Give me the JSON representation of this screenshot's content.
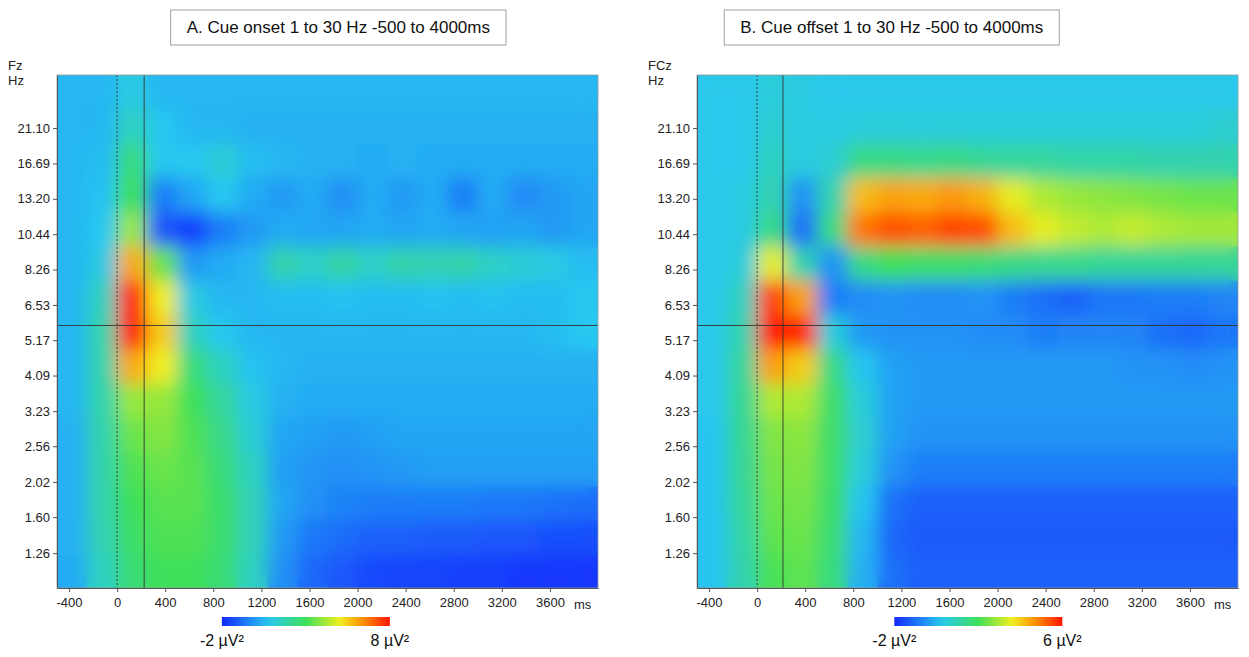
{
  "chart_data": [
    {
      "type": "heatmap",
      "title": "A. Cue onset 1 to 30 Hz -500 to 4000ms",
      "annotations": [
        "Fz"
      ],
      "x_label": "ms",
      "y_label": "Hz",
      "log": "y",
      "xlim": [
        -500,
        4000
      ],
      "ylim": [
        1,
        30
      ],
      "xticks": [
        -400,
        0,
        400,
        800,
        1200,
        1600,
        2000,
        2400,
        2800,
        3200,
        3600
      ],
      "yticks": [
        1.26,
        {
          "value": 1.6,
          "label": "1.60"
        },
        2.02,
        2.56,
        3.23,
        4.09,
        5.17,
        6.53,
        8.26,
        10.44,
        {
          "value": 13.2,
          "label": "13.20"
        },
        16.69,
        {
          "value": 21.1,
          "label": "21.10"
        }
      ],
      "x_bins": [
        -500,
        -250,
        0,
        250,
        500,
        750,
        1000,
        1250,
        1500,
        1750,
        2000,
        2250,
        2500,
        2750,
        3000,
        3250,
        3500,
        3750,
        4000
      ],
      "y_bins": [
        1,
        1.25,
        1.57,
        1.97,
        2.48,
        3.11,
        3.9,
        4.89,
        6.14,
        7.7,
        9.66,
        12.11,
        15.19,
        19.06,
        23.91,
        30
      ],
      "values": [
        [
          0.3,
          1.5,
          2.6,
          3.0,
          3.0,
          2.6,
          1.5,
          -0.2,
          -0.9,
          -1.2,
          -1.4,
          -1.5,
          -1.5,
          -1.6,
          -1.6,
          -1.7,
          -1.7,
          -1.7
        ],
        [
          0.4,
          1.7,
          2.8,
          3.2,
          3.2,
          2.7,
          1.6,
          0,
          -0.6,
          -0.8,
          -1.0,
          -1.0,
          -1.1,
          -1.1,
          -1.2,
          -1.2,
          -1.3,
          -1.3
        ],
        [
          0.4,
          1.8,
          3.0,
          3.3,
          3.3,
          2.7,
          1.6,
          0.2,
          -0.2,
          -0.4,
          -0.5,
          -0.5,
          -0.5,
          -0.5,
          -0.6,
          -0.6,
          -0.7,
          -0.8
        ],
        [
          0.4,
          1.8,
          3.2,
          3.5,
          3.3,
          2.5,
          1.5,
          0.1,
          -0.1,
          -0.2,
          -0.1,
          0,
          0.1,
          0.1,
          0.1,
          0.1,
          0.1,
          0.1
        ],
        [
          0.4,
          1.8,
          3.5,
          3.8,
          3.2,
          2.3,
          1.2,
          0.2,
          0.1,
          0,
          0.1,
          0.2,
          0.2,
          0.2,
          0.2,
          0.2,
          0.2,
          0.2
        ],
        [
          0.5,
          1.8,
          4.0,
          4.0,
          3.0,
          2.0,
          1.0,
          0.4,
          0.3,
          0.3,
          0.3,
          0.3,
          0.3,
          0.3,
          0.3,
          0.3,
          0.3,
          0.3
        ],
        [
          0.5,
          1.8,
          6.0,
          5.0,
          2.5,
          1.5,
          0.7,
          0.5,
          0.4,
          0.4,
          0.4,
          0.4,
          0.4,
          0.4,
          0.4,
          0.4,
          0.4,
          0.4
        ],
        [
          0.5,
          1.8,
          8.0,
          5.5,
          1.5,
          0.8,
          0.5,
          0.5,
          0.5,
          0.5,
          0.5,
          0.5,
          0.5,
          0.5,
          0.5,
          0.5,
          0.6,
          0.8
        ],
        [
          0.5,
          1.5,
          7.8,
          5.0,
          1.0,
          0.5,
          0.5,
          0.6,
          0.6,
          0.7,
          0.6,
          0.6,
          0.7,
          0.6,
          0.7,
          0.6,
          0.6,
          0.8
        ],
        [
          0.5,
          1.0,
          6.0,
          3.5,
          0,
          0.3,
          0.5,
          1.8,
          1.4,
          1.9,
          1.4,
          1.8,
          1.7,
          1.8,
          1.4,
          1.2,
          1.0,
          0.6
        ],
        [
          0.5,
          0.8,
          4.0,
          -1.2,
          -1.6,
          -0.5,
          0,
          0.3,
          0.2,
          0.2,
          0.3,
          0.2,
          0.3,
          0.2,
          0.1,
          0.2,
          0,
          0.2
        ],
        [
          0.5,
          0.7,
          3.0,
          -0.5,
          0.2,
          0.8,
          0.3,
          0,
          0.3,
          -0.2,
          0.3,
          0,
          0.3,
          -0.5,
          0.3,
          -0.3,
          0,
          0.2
        ],
        [
          0.5,
          0.6,
          2.5,
          0.8,
          0.8,
          1.2,
          0.6,
          0.5,
          0.4,
          0.4,
          0.3,
          0.4,
          0.3,
          0.3,
          0.3,
          0.3,
          0.3,
          0.3
        ],
        [
          0.5,
          0.5,
          1.5,
          0.8,
          0.5,
          0.5,
          0.4,
          0.4,
          0.4,
          0.4,
          0.4,
          0.4,
          0.4,
          0.4,
          0.4,
          0.4,
          0.4,
          0.4
        ],
        [
          0.5,
          0.5,
          1.0,
          0.5,
          0.5,
          0.5,
          0.5,
          0.5,
          0.5,
          0.5,
          0.5,
          0.5,
          0.5,
          0.5,
          0.5,
          0.5,
          0.5,
          0.5
        ]
      ],
      "vlines": [
        {
          "value": 0,
          "line_style": "dotted"
        },
        {
          "value": 225,
          "line_style": "solid"
        }
      ],
      "hlines": [
        {
          "value": 5.7,
          "line_style": "solid"
        }
      ],
      "colorbar": {
        "range": [
          -2,
          8
        ],
        "ticks": [
          {
            "value": -2,
            "label": "-2 µV²"
          },
          {
            "value": 8,
            "label": "8 µV²"
          }
        ]
      }
    },
    {
      "type": "heatmap",
      "title": "B. Cue offset 1 to 30 Hz -500 to 4000ms",
      "annotations": [
        "FCz"
      ],
      "x_label": "ms",
      "y_label": "Hz",
      "log": "y",
      "xlim": [
        -500,
        4000
      ],
      "ylim": [
        1,
        30
      ],
      "xticks": [
        -400,
        0,
        400,
        800,
        1200,
        1600,
        2000,
        2400,
        2800,
        3200,
        3600
      ],
      "yticks": [
        1.26,
        {
          "value": 1.6,
          "label": "1.60"
        },
        2.02,
        2.56,
        3.23,
        4.09,
        5.17,
        6.53,
        8.26,
        10.44,
        {
          "value": 13.2,
          "label": "13.20"
        },
        16.69,
        {
          "value": 21.1,
          "label": "21.10"
        }
      ],
      "x_bins": [
        -500,
        -250,
        0,
        250,
        500,
        750,
        1000,
        1250,
        1500,
        1750,
        2000,
        2250,
        2500,
        2750,
        3000,
        3250,
        3500,
        3750,
        4000
      ],
      "y_bins": [
        1,
        1.25,
        1.57,
        1.97,
        2.48,
        3.11,
        3.9,
        4.89,
        6.14,
        7.7,
        9.66,
        12.11,
        15.19,
        19.06,
        23.91,
        30
      ],
      "values": [
        [
          0.2,
          1.0,
          2.1,
          2.3,
          1.6,
          -0.1,
          -1.0,
          -1.2,
          -1.2,
          -1.2,
          -1.2,
          -1.2,
          -1.2,
          -1.2,
          -1.2,
          -1.2,
          -1.2,
          -1.2
        ],
        [
          0.2,
          1.1,
          2.3,
          2.4,
          1.7,
          0,
          -1.1,
          -1.3,
          -1.3,
          -1.3,
          -1.3,
          -1.3,
          -1.3,
          -1.3,
          -1.3,
          -1.3,
          -1.3,
          -1.3
        ],
        [
          0.2,
          1.2,
          2.4,
          2.5,
          1.8,
          0.2,
          -1.0,
          -1.2,
          -1.2,
          -1.2,
          -1.2,
          -1.2,
          -1.2,
          -1.2,
          -1.2,
          -1.2,
          -1.2,
          -1.2
        ],
        [
          0.2,
          1.3,
          2.5,
          2.6,
          1.8,
          0.5,
          -0.5,
          -0.8,
          -0.8,
          -0.8,
          -0.8,
          -0.8,
          -0.8,
          -0.8,
          -0.8,
          -0.8,
          -0.8,
          -0.8
        ],
        [
          0.2,
          1.3,
          2.6,
          2.7,
          1.8,
          0.6,
          -0.3,
          -0.5,
          -0.5,
          -0.5,
          -0.5,
          -0.5,
          -0.5,
          -0.5,
          -0.5,
          -0.5,
          -0.5,
          -0.5
        ],
        [
          0.3,
          1.3,
          3.0,
          3.0,
          1.8,
          0.5,
          -0.3,
          -0.4,
          -0.4,
          -0.4,
          -0.4,
          -0.4,
          -0.4,
          -0.4,
          -0.4,
          -0.4,
          -0.4,
          -0.4
        ],
        [
          0.3,
          1.2,
          4.5,
          4.0,
          1.5,
          0.2,
          -0.3,
          -0.4,
          -0.4,
          -0.4,
          -0.4,
          -0.4,
          -0.4,
          -0.4,
          -0.5,
          -0.5,
          -0.6,
          -0.5
        ],
        [
          0.3,
          1.0,
          6.0,
          5.8,
          0.5,
          -0.4,
          -0.5,
          -0.5,
          -0.5,
          -0.6,
          -0.6,
          -0.8,
          -0.7,
          -0.7,
          -0.7,
          -1.0,
          -1.1,
          -0.9
        ],
        [
          0.3,
          0.8,
          5.5,
          4.5,
          -0.8,
          -0.6,
          -0.5,
          -0.6,
          -0.6,
          -0.5,
          -0.8,
          -1.0,
          -1.2,
          -0.9,
          -0.9,
          -0.8,
          -0.8,
          -0.7
        ],
        [
          0.3,
          0.5,
          3.5,
          1.0,
          -0.5,
          1.5,
          2.0,
          1.8,
          1.8,
          1.7,
          1.5,
          1.4,
          1.4,
          1.3,
          1.3,
          1.3,
          1.3,
          1.3
        ],
        [
          0.3,
          0.4,
          1.5,
          -1.0,
          1.5,
          5.0,
          5.4,
          5.2,
          5.5,
          5.4,
          4.2,
          3.5,
          3.2,
          3.0,
          3.2,
          3.0,
          2.9,
          2.9
        ],
        [
          0.3,
          0.4,
          1.0,
          -0.5,
          1.0,
          4.2,
          4.5,
          4.4,
          4.6,
          4.3,
          3.5,
          3.0,
          2.8,
          2.7,
          2.6,
          2.5,
          2.4,
          2.4
        ],
        [
          0.3,
          0.3,
          0.8,
          0.4,
          0.6,
          1.5,
          1.5,
          1.4,
          1.5,
          1.3,
          1.2,
          1.2,
          1.1,
          1.1,
          1.1,
          1.0,
          1.0,
          1.0
        ],
        [
          0.3,
          0.3,
          0.6,
          0.4,
          0.4,
          0.5,
          0.5,
          0.5,
          0.5,
          0.5,
          0.5,
          0.5,
          0.5,
          0.5,
          0.5,
          0.5,
          0.5,
          0.6
        ],
        [
          0.3,
          0.3,
          0.5,
          0.4,
          0.3,
          0.3,
          0.3,
          0.3,
          0.3,
          0.3,
          0.3,
          0.3,
          0.3,
          0.3,
          0.3,
          0.3,
          0.3,
          0.3
        ]
      ],
      "vlines": [
        {
          "value": 0,
          "line_style": "dotted"
        },
        {
          "value": 215,
          "line_style": "solid"
        }
      ],
      "hlines": [
        {
          "value": 5.7,
          "line_style": "solid"
        }
      ],
      "colorbar": {
        "range": [
          -2,
          6
        ],
        "ticks": [
          {
            "value": -2,
            "label": "-2 µV²"
          },
          {
            "value": 6,
            "label": "6 µV²"
          }
        ]
      }
    }
  ]
}
